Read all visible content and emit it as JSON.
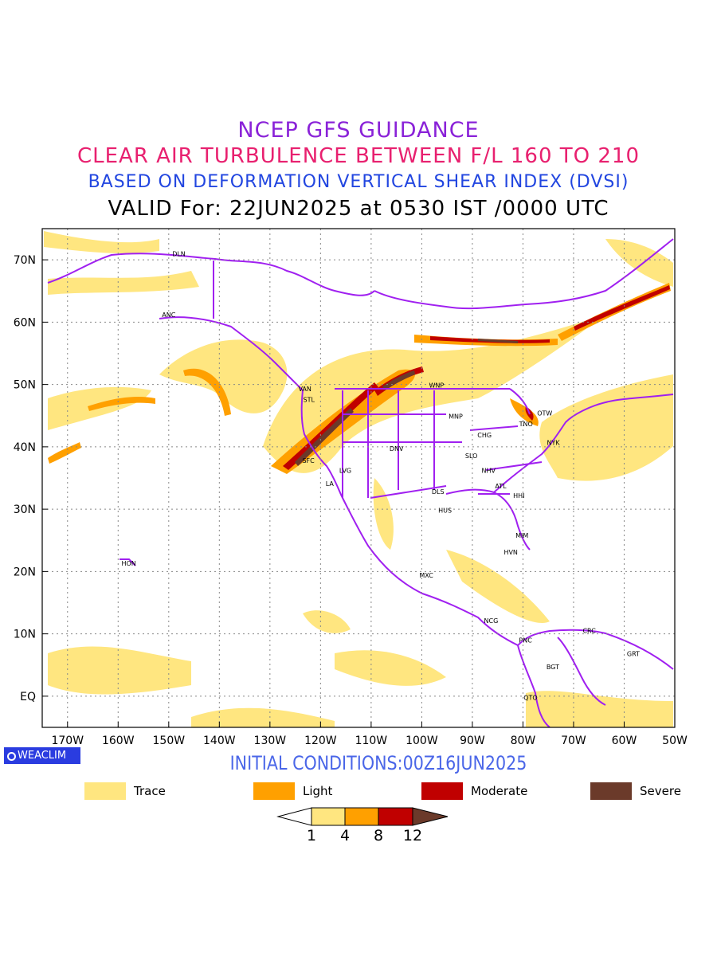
{
  "header": {
    "line1": "NCEP GFS GUIDANCE",
    "line2": "CLEAR AIR TURBULENCE BETWEEN F/L 160 TO 210",
    "line3": "BASED ON DEFORMATION VERTICAL SHEAR INDEX (DVSI)",
    "line4": "VALID For: 22JUN2025 at 0530 IST /0000 UTC"
  },
  "map": {
    "lon_range": [
      -175,
      -50
    ],
    "lat_range": [
      -5,
      75
    ],
    "lat_ticks": [
      {
        "value": 70,
        "label": "70N"
      },
      {
        "value": 60,
        "label": "60N"
      },
      {
        "value": 50,
        "label": "50N"
      },
      {
        "value": 40,
        "label": "40N"
      },
      {
        "value": 30,
        "label": "30N"
      },
      {
        "value": 20,
        "label": "20N"
      },
      {
        "value": 10,
        "label": "10N"
      },
      {
        "value": 0,
        "label": "EQ"
      }
    ],
    "lon_ticks": [
      {
        "value": -170,
        "label": "170W"
      },
      {
        "value": -160,
        "label": "160W"
      },
      {
        "value": -150,
        "label": "150W"
      },
      {
        "value": -140,
        "label": "140W"
      },
      {
        "value": -130,
        "label": "130W"
      },
      {
        "value": -120,
        "label": "120W"
      },
      {
        "value": -110,
        "label": "110W"
      },
      {
        "value": -100,
        "label": "100W"
      },
      {
        "value": -90,
        "label": "90W"
      },
      {
        "value": -80,
        "label": "80W"
      },
      {
        "value": -70,
        "label": "70W"
      },
      {
        "value": -60,
        "label": "60W"
      },
      {
        "value": -50,
        "label": "50W"
      }
    ],
    "stations": [
      {
        "code": "DLN",
        "lon": -148,
        "lat": 71
      },
      {
        "code": "ANC",
        "lon": -150,
        "lat": 61.2
      },
      {
        "code": "VAN",
        "lon": -123.1,
        "lat": 49.3
      },
      {
        "code": "STL",
        "lon": -122.3,
        "lat": 47.6
      },
      {
        "code": "WNP",
        "lon": -97.1,
        "lat": 49.9
      },
      {
        "code": "MNP",
        "lon": -93.3,
        "lat": 44.9
      },
      {
        "code": "OTW",
        "lon": -75.7,
        "lat": 45.4
      },
      {
        "code": "TNO",
        "lon": -79.4,
        "lat": 43.7
      },
      {
        "code": "CHG",
        "lon": -87.6,
        "lat": 41.9
      },
      {
        "code": "NYK",
        "lon": -74,
        "lat": 40.7
      },
      {
        "code": "DNV",
        "lon": -105,
        "lat": 39.7
      },
      {
        "code": "SFC",
        "lon": -122.4,
        "lat": 37.8
      },
      {
        "code": "SLO",
        "lon": -90.2,
        "lat": 38.6
      },
      {
        "code": "LVG",
        "lon": -115.1,
        "lat": 36.2
      },
      {
        "code": "NHV",
        "lon": -86.8,
        "lat": 36.2
      },
      {
        "code": "LA",
        "lon": -118.2,
        "lat": 34.1
      },
      {
        "code": "ATL",
        "lon": -84.4,
        "lat": 33.7
      },
      {
        "code": "DLS",
        "lon": -96.8,
        "lat": 32.8
      },
      {
        "code": "HHI",
        "lon": -80.8,
        "lat": 32.2
      },
      {
        "code": "HUS",
        "lon": -95.4,
        "lat": 29.8
      },
      {
        "code": "MIM",
        "lon": -80.2,
        "lat": 25.8
      },
      {
        "code": "HVN",
        "lon": -82.4,
        "lat": 23.1
      },
      {
        "code": "HON",
        "lon": -157.9,
        "lat": 21.3
      },
      {
        "code": "MXC",
        "lon": -99.1,
        "lat": 19.4
      },
      {
        "code": "NCG",
        "lon": -86.3,
        "lat": 12.1
      },
      {
        "code": "CRC",
        "lon": -66.9,
        "lat": 10.5
      },
      {
        "code": "PNC",
        "lon": -79.5,
        "lat": 9
      },
      {
        "code": "GRT",
        "lon": -58.2,
        "lat": 6.8
      },
      {
        "code": "BGT",
        "lon": -74.1,
        "lat": 4.7
      },
      {
        "code": "QTO",
        "lon": -78.5,
        "lat": -0.2
      }
    ]
  },
  "footer": {
    "logo_text": "WEACLIM",
    "initial_conditions": "INITIAL CONDITIONS:00Z16JUN2025"
  },
  "legend": {
    "items": [
      {
        "label": "Trace",
        "color": "#ffe680"
      },
      {
        "label": "Light",
        "color": "#ffa000"
      },
      {
        "label": "Moderate",
        "color": "#c00000"
      },
      {
        "label": "Severe",
        "color": "#6b3a2a"
      }
    ],
    "colorbar_labels": [
      "1",
      "4",
      "8",
      "12"
    ]
  },
  "colors": {
    "trace": "#ffe680",
    "light": "#ffa000",
    "moderate": "#c00000",
    "severe": "#6b3a2a",
    "boundaries": "#a020f0"
  }
}
